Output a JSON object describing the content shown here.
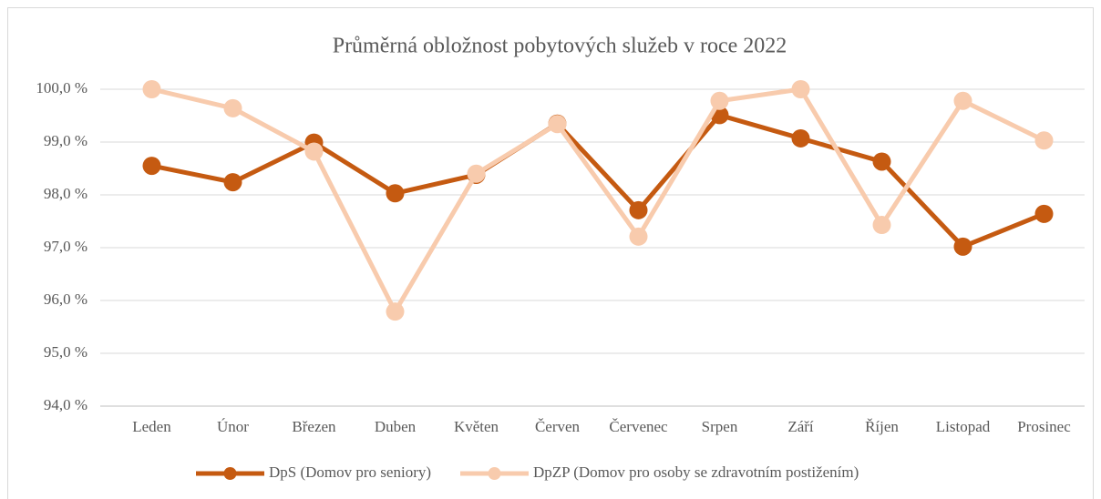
{
  "chart_data": {
    "type": "line",
    "title": "Průměrná obložnost pobytových služeb v roce 2022",
    "categories": [
      "Leden",
      "Únor",
      "Březen",
      "Duben",
      "Květen",
      "Červen",
      "Červenec",
      "Srpen",
      "Září",
      "Říjen",
      "Listopad",
      "Prosinec"
    ],
    "series": [
      {
        "name": "DpS (Domov pro seniory)",
        "color": "#c55a11",
        "values": [
          98.55,
          98.24,
          98.99,
          98.03,
          98.38,
          99.35,
          97.71,
          99.51,
          99.07,
          98.63,
          97.02,
          97.64
        ]
      },
      {
        "name": "DpZP (Domov pro osoby se zdravotním postižením)",
        "color": "#f8cbad",
        "values": [
          100.0,
          99.64,
          98.82,
          95.79,
          98.4,
          99.34,
          97.21,
          99.78,
          100.0,
          97.43,
          99.78,
          99.03
        ]
      }
    ],
    "ylim": [
      94,
      100
    ],
    "yticks": [
      {
        "value": 94,
        "label": "94,0 %"
      },
      {
        "value": 95,
        "label": "95,0 %"
      },
      {
        "value": 96,
        "label": "96,0 %"
      },
      {
        "value": 97,
        "label": "97,0 %"
      },
      {
        "value": 98,
        "label": "98,0 %"
      },
      {
        "value": 99,
        "label": "99,0 %"
      },
      {
        "value": 100,
        "label": "100,0 %"
      }
    ],
    "grid": true,
    "legend": "bottom"
  }
}
